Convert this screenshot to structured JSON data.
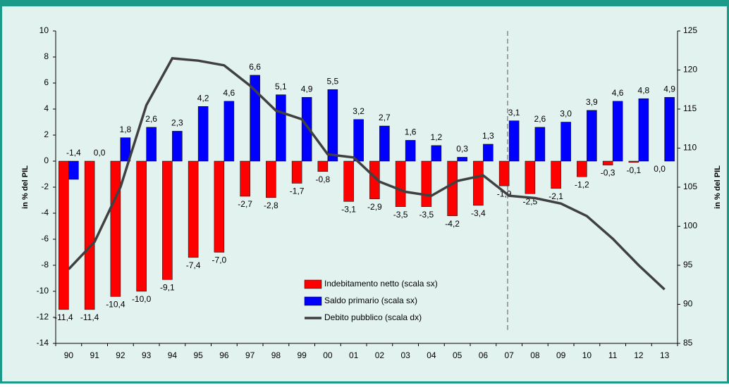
{
  "chart_data": {
    "type": "bar_line",
    "categories": [
      "90",
      "91",
      "92",
      "93",
      "94",
      "95",
      "96",
      "97",
      "98",
      "99",
      "00",
      "01",
      "02",
      "03",
      "04",
      "05",
      "06",
      "07",
      "08",
      "09",
      "10",
      "11",
      "12",
      "13"
    ],
    "ylabel": "in % del PIL",
    "y2label": "in % del PIL",
    "ylim": [
      -14,
      10
    ],
    "yticks": [
      -14,
      -12,
      -10,
      -8,
      -6,
      -4,
      -2,
      0,
      2,
      4,
      6,
      8,
      10
    ],
    "y2lim": [
      85,
      125
    ],
    "y2ticks": [
      85,
      90,
      95,
      100,
      105,
      110,
      115,
      120,
      125
    ],
    "series": [
      {
        "name": "Indebitamento netto (scala sx)",
        "color": "#ff0000",
        "kind": "bar",
        "values": [
          -11.4,
          -11.4,
          -10.4,
          -10.0,
          -9.1,
          -7.4,
          -7.0,
          -2.7,
          -2.8,
          -1.7,
          -0.8,
          -3.1,
          -2.9,
          -3.5,
          -3.5,
          -4.2,
          -3.4,
          -1.9,
          -2.5,
          -2.1,
          -1.2,
          -0.3,
          -0.1,
          0.0
        ],
        "value_labels": [
          "-11,4",
          "-11,4",
          "-10,4",
          "-10,0",
          "-9,1",
          "-7,4",
          "-7,0",
          "-2,7",
          "-2,8",
          "-1,7",
          "-0,8",
          "-3,1",
          "-2,9",
          "-3,5",
          "-3,5",
          "-4,2",
          "-3,4",
          "-1,9",
          "-2,5",
          "-2,1",
          "-1,2",
          "-0,3",
          "-0,1",
          "0,0"
        ]
      },
      {
        "name": "Saldo primario  (scala sx)",
        "color": "#0000ff",
        "kind": "bar",
        "values": [
          -1.4,
          0.0,
          1.8,
          2.6,
          2.3,
          4.2,
          4.6,
          6.6,
          5.1,
          4.9,
          5.5,
          3.2,
          2.7,
          1.6,
          1.2,
          0.3,
          1.3,
          3.1,
          2.6,
          3.0,
          3.9,
          4.6,
          4.8,
          4.9
        ],
        "value_labels": [
          "-1,4",
          "0,0",
          "1,8",
          "2,6",
          "2,3",
          "4,2",
          "4,6",
          "6,6",
          "5,1",
          "4,9",
          "5,5",
          "3,2",
          "2,7",
          "1,6",
          "1,2",
          "0,3",
          "1,3",
          "3,1",
          "2,6",
          "3,0",
          "3,9",
          "4,6",
          "4,8",
          "4,9"
        ]
      },
      {
        "name": "Debito pubblico (scala dx)",
        "color": "#404040",
        "kind": "line",
        "axis": "y2",
        "values": [
          94.5,
          98,
          105,
          115.5,
          121.5,
          121.2,
          120.6,
          118,
          114.8,
          113.7,
          109.2,
          108.8,
          105.7,
          104.4,
          103.9,
          105.8,
          106.5,
          103.9,
          103.6,
          102.9,
          101.3,
          98.4,
          95,
          91.9
        ]
      }
    ]
  }
}
